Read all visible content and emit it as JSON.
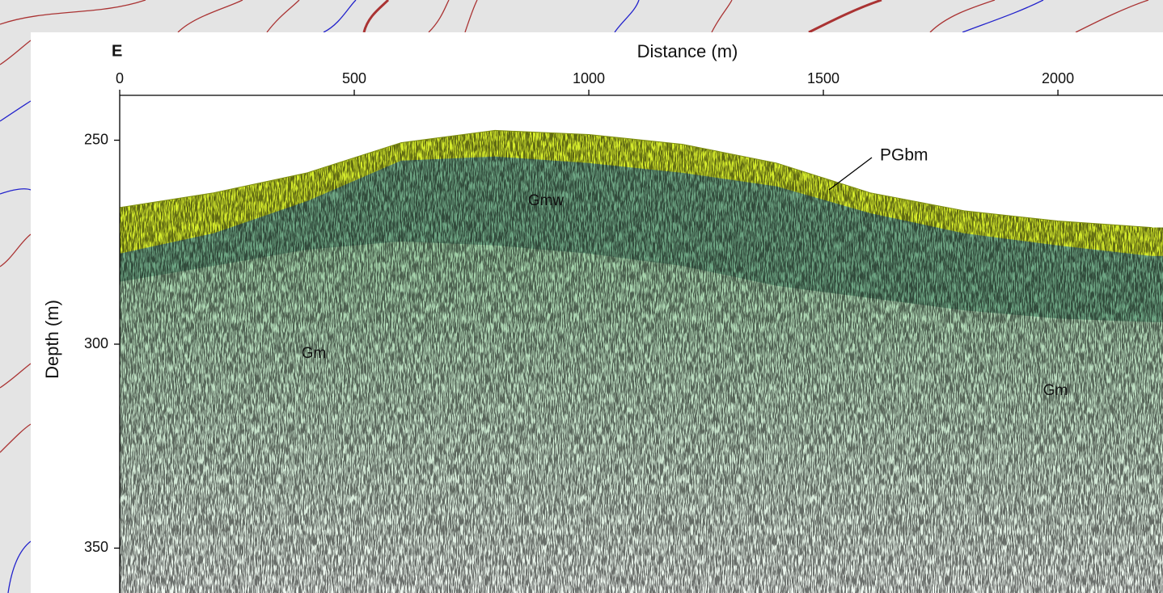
{
  "chart_data": {
    "type": "section",
    "corner_label": "E",
    "xlabel": "Distance (m)",
    "ylabel": "Depth (m)",
    "xlim": [
      0,
      2224
    ],
    "xticks": [
      0,
      500,
      1000,
      1500,
      2000
    ],
    "ylim": [
      239,
      361
    ],
    "yticks": [
      250,
      300,
      350
    ],
    "x": [
      0,
      200,
      400,
      600,
      800,
      1000,
      1200,
      1400,
      1600,
      1800,
      2000,
      2200
    ],
    "surface": [
      266.5,
      262.9,
      258,
      250.6,
      247.6,
      248.6,
      251,
      255.6,
      262.9,
      267.3,
      269.8,
      271.4
    ],
    "layers": [
      {
        "name": "PGbm",
        "color": "#d6ec2c",
        "base": [
          277.8,
          272.8,
          264.9,
          255,
          254,
          255.6,
          258,
          261.3,
          267.9,
          272.8,
          275.8,
          278.4
        ]
      },
      {
        "name": "Gmw",
        "color": "#6ea684",
        "base": [
          284.7,
          280.8,
          276.8,
          274.8,
          275.8,
          277.8,
          280.8,
          285.7,
          288.7,
          291.7,
          293.7,
          294.6
        ]
      },
      {
        "name": "Gm",
        "color": "#9fd0a6"
      }
    ]
  }
}
